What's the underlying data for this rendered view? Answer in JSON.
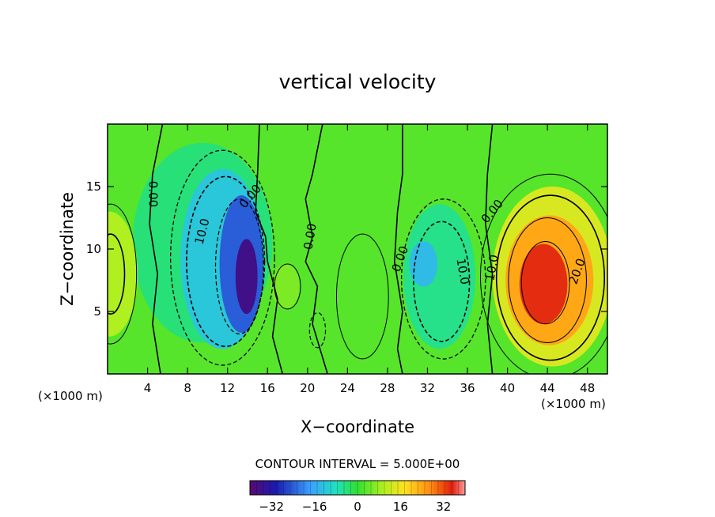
{
  "chart_data": {
    "type": "heatmap",
    "title": "vertical velocity",
    "xlabel": "X−coordinate",
    "ylabel": "Z−coordinate",
    "x_unit": "(×1000 m)",
    "z_unit": "(×1000 m)",
    "xlim": [
      0,
      50
    ],
    "ylim": [
      0,
      20
    ],
    "x_ticks": [
      4,
      8,
      12,
      16,
      20,
      24,
      28,
      32,
      36,
      40,
      44,
      48
    ],
    "y_ticks": [
      5,
      10,
      15
    ],
    "contour_interval_text": "CONTOUR INTERVAL = 5.000E+00",
    "contour_labels": [
      "0.00",
      "10.0",
      "0.00",
      "0.00",
      "0.00",
      "10.0",
      "0.00",
      "10.0",
      "20.0"
    ],
    "colorbar": {
      "range": [
        -40,
        40
      ],
      "ticks": [
        -32,
        -16,
        0,
        16,
        32
      ],
      "tick_labels": [
        "−32",
        "−16",
        "0",
        "16",
        "32"
      ]
    },
    "features": [
      {
        "x": 13.8,
        "z": 8.0,
        "value": -36
      },
      {
        "x": 10.5,
        "z": 9.0,
        "value": -14
      },
      {
        "x": 31.5,
        "z": 8.8,
        "value": -14
      },
      {
        "x": 33.0,
        "z": 6.5,
        "value": -6
      },
      {
        "x": 43.5,
        "z": 7.5,
        "value": 34
      },
      {
        "x": 45.5,
        "z": 9.5,
        "value": 22
      },
      {
        "x": 0.3,
        "z": 8.0,
        "value": 10
      },
      {
        "x": 17.8,
        "z": 7.0,
        "value": 5
      },
      {
        "x": 21.0,
        "z": 3.5,
        "value": -4
      }
    ]
  }
}
